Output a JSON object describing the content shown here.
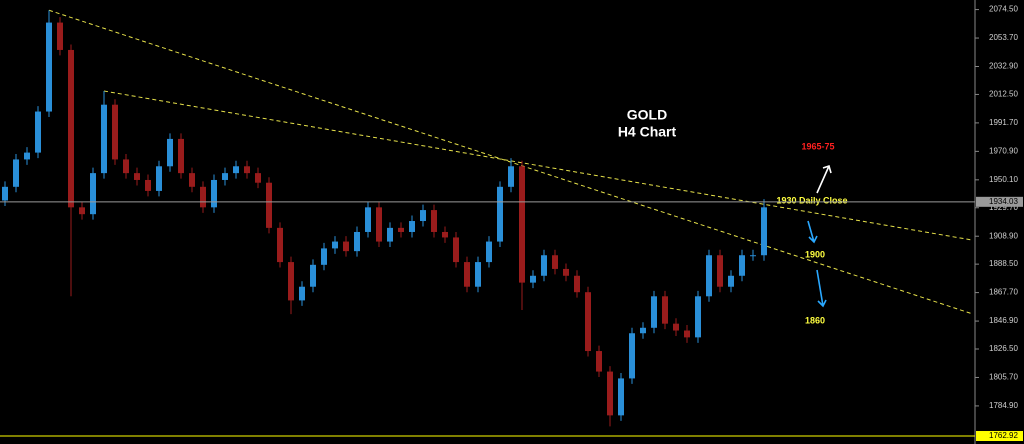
{
  "chart_data": {
    "type": "candlestick",
    "title": "GOLD",
    "subtitle": "H4 Chart",
    "ylim": [
      1760,
      2081.5
    ],
    "yticks": [
      {
        "value": 2074.5,
        "label": "2074.50"
      },
      {
        "value": 2053.7,
        "label": "2053.70"
      },
      {
        "value": 2032.9,
        "label": "2032.90"
      },
      {
        "value": 2012.5,
        "label": "2012.50"
      },
      {
        "value": 1991.7,
        "label": "1991.70"
      },
      {
        "value": 1970.9,
        "label": "1970.90"
      },
      {
        "value": 1950.1,
        "label": "1950.10"
      },
      {
        "value": 1929.7,
        "label": "1929.70"
      },
      {
        "value": 1908.9,
        "label": "1908.90"
      },
      {
        "value": 1888.5,
        "label": "1888.50"
      },
      {
        "value": 1867.7,
        "label": "1867.70"
      },
      {
        "value": 1846.9,
        "label": "1846.90"
      },
      {
        "value": 1826.5,
        "label": "1826.50"
      },
      {
        "value": 1805.7,
        "label": "1805.70"
      },
      {
        "value": 1784.9,
        "label": "1784.90"
      }
    ],
    "up_color": "#2a8fd8",
    "down_color": "#9a1c1c",
    "open": [
      1935,
      1945,
      1965,
      1970,
      2000,
      2065,
      2045,
      1930,
      1925,
      1955,
      2005,
      1965,
      1955,
      1950,
      1942,
      1960,
      1980,
      1955,
      1945,
      1930,
      1950,
      1955,
      1960,
      1955,
      1948,
      1915,
      1890,
      1862,
      1872,
      1888,
      1900,
      1905,
      1898,
      1912,
      1930,
      1905,
      1915,
      1912,
      1920,
      1928,
      1912,
      1908,
      1890,
      1872,
      1890,
      1905,
      1945,
      1960,
      1875,
      1880,
      1895,
      1885,
      1880,
      1868,
      1825,
      1810,
      1778,
      1805,
      1838,
      1842,
      1865,
      1845,
      1840,
      1835,
      1865,
      1895,
      1872,
      1880,
      1895,
      1895
    ],
    "high": [
      1949,
      1969,
      1974,
      2004,
      2074,
      2069,
      2049,
      1934,
      1959,
      2015,
      2009,
      1969,
      1959,
      1954,
      1964,
      1984,
      1984,
      1959,
      1949,
      1954,
      1959,
      1964,
      1964,
      1959,
      1952,
      1919,
      1894,
      1876,
      1892,
      1904,
      1909,
      1909,
      1916,
      1934,
      1934,
      1919,
      1919,
      1924,
      1932,
      1932,
      1916,
      1912,
      1894,
      1894,
      1909,
      1949,
      1966,
      1964,
      1884,
      1899,
      1899,
      1889,
      1884,
      1872,
      1829,
      1814,
      1809,
      1842,
      1846,
      1869,
      1869,
      1849,
      1844,
      1869,
      1899,
      1899,
      1884,
      1899,
      1899,
      1936
    ],
    "low": [
      1931,
      1941,
      1961,
      1966,
      1996,
      2041,
      1865,
      1921,
      1921,
      1951,
      1961,
      1951,
      1946,
      1938,
      1938,
      1956,
      1951,
      1941,
      1926,
      1926,
      1946,
      1951,
      1951,
      1944,
      1911,
      1886,
      1852,
      1858,
      1868,
      1884,
      1896,
      1894,
      1894,
      1908,
      1901,
      1901,
      1908,
      1908,
      1916,
      1908,
      1904,
      1886,
      1868,
      1868,
      1886,
      1901,
      1941,
      1855,
      1871,
      1876,
      1881,
      1876,
      1864,
      1821,
      1806,
      1770,
      1774,
      1801,
      1834,
      1838,
      1841,
      1836,
      1831,
      1831,
      1861,
      1868,
      1868,
      1876,
      1891,
      1891
    ],
    "close": [
      1945,
      1965,
      1970,
      2000,
      2065,
      2045,
      1930,
      1925,
      1955,
      2005,
      1965,
      1955,
      1950,
      1942,
      1960,
      1980,
      1955,
      1945,
      1930,
      1950,
      1955,
      1960,
      1955,
      1948,
      1915,
      1890,
      1862,
      1872,
      1888,
      1900,
      1905,
      1898,
      1912,
      1930,
      1905,
      1915,
      1912,
      1920,
      1928,
      1912,
      1908,
      1890,
      1872,
      1890,
      1905,
      1945,
      1960,
      1875,
      1880,
      1895,
      1885,
      1880,
      1868,
      1825,
      1810,
      1778,
      1805,
      1838,
      1842,
      1865,
      1845,
      1840,
      1835,
      1865,
      1895,
      1872,
      1880,
      1895,
      1895,
      1930
    ],
    "trendlines": [
      {
        "x": [
          4,
          88
        ],
        "y": [
          2074,
          1852
        ]
      },
      {
        "x": [
          9,
          88
        ],
        "y": [
          2015,
          1906
        ]
      }
    ],
    "trendline_color": "#e6e14a",
    "price_lines": [
      {
        "value": 1934.03,
        "color": "#9a9a9a"
      },
      {
        "value": 1762.92,
        "color": "#ffff00"
      }
    ],
    "annotations": [
      "1965-75",
      "1930 Daily Close",
      "1900",
      "1860"
    ]
  }
}
